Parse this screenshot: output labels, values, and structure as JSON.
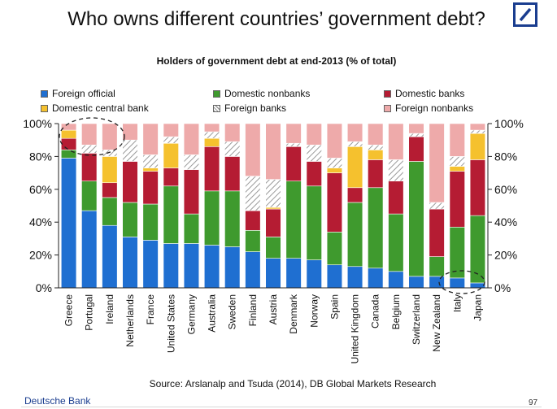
{
  "header": {
    "title": "Who owns different countries’ government debt?"
  },
  "footer": {
    "source": "Source: Arslanalp and Tsuda (2014), DB Global Markets Research",
    "brand": "Deutsche Bank",
    "page": "97"
  },
  "chart_data": {
    "type": "stacked_bar",
    "title": "Holders of government debt at end-2013 (% of total)",
    "categories": [
      "Greece",
      "Portugal",
      "Ireland",
      "Netherlands",
      "France",
      "United States",
      "Germany",
      "Australia",
      "Sweden",
      "Finland",
      "Austria",
      "Denmark",
      "Norway",
      "Spain",
      "United Kingdom",
      "Canada",
      "Belgium",
      "Switzerland",
      "New Zealand",
      "Italy",
      "Japan"
    ],
    "y_ticks": [
      "0%",
      "20%",
      "40%",
      "60%",
      "80%",
      "100%"
    ],
    "ylim": [
      0,
      100
    ],
    "series": [
      {
        "name": "Foreign official",
        "color": "#1f6fd1",
        "values": [
          79,
          47,
          38,
          31,
          29,
          27,
          27,
          26,
          25,
          22,
          18,
          18,
          17,
          14,
          13,
          12,
          10,
          7,
          7,
          6,
          3
        ]
      },
      {
        "name": "Domestic nonbanks",
        "color": "#3f9a2e",
        "values": [
          5,
          18,
          17,
          21,
          22,
          35,
          18,
          33,
          34,
          13,
          13,
          47,
          45,
          20,
          39,
          49,
          35,
          70,
          12,
          31,
          41
        ]
      },
      {
        "name": "Domestic banks",
        "color": "#b51c33",
        "values": [
          7,
          17,
          9,
          25,
          20,
          11,
          27,
          27,
          21,
          12,
          17,
          21,
          15,
          36,
          9,
          17,
          20,
          15,
          29,
          34,
          34
        ]
      },
      {
        "name": "Domestic central bank",
        "color": "#f5c12e",
        "values": [
          5,
          0,
          16,
          0,
          2,
          15,
          0,
          5,
          0,
          0,
          1,
          0,
          0,
          3,
          25,
          6,
          0,
          0,
          0,
          3,
          16
        ]
      },
      {
        "name": "Foreign banks",
        "color": "hatch",
        "values": [
          0,
          5,
          4,
          13,
          8,
          4,
          9,
          4,
          9,
          21,
          17,
          2,
          10,
          6,
          3,
          3,
          13,
          2,
          4,
          6,
          2
        ]
      },
      {
        "name": "Foreign nonbanks",
        "color": "#eeaaaa",
        "values": [
          4,
          13,
          16,
          10,
          19,
          8,
          19,
          5,
          11,
          32,
          34,
          12,
          13,
          21,
          11,
          13,
          22,
          6,
          48,
          20,
          4
        ]
      }
    ],
    "legend_position": "top",
    "grid": false,
    "dual_axis_labels": true,
    "annotations": [
      "dashed circle around Greece/Portugal tops",
      "dashed circle around Japan/Italy bottoms"
    ]
  }
}
